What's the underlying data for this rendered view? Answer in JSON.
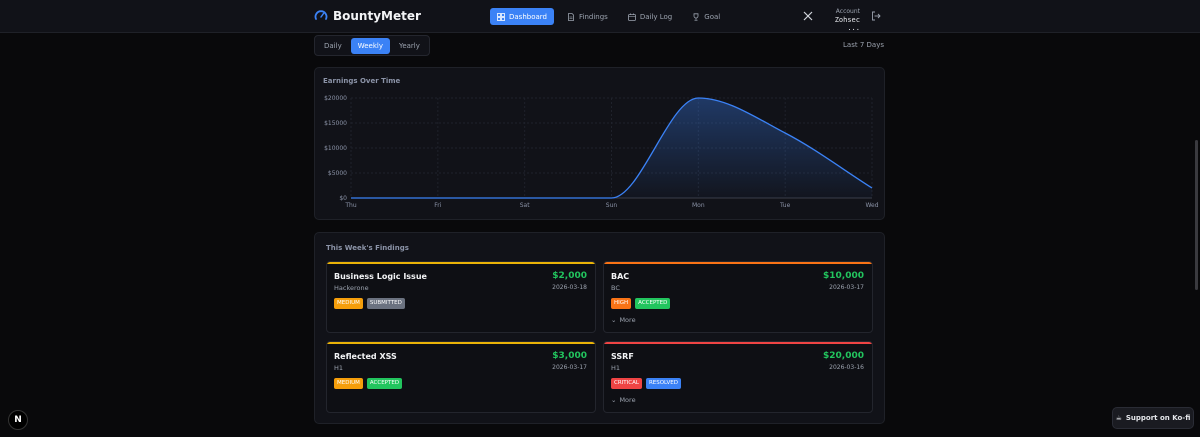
{
  "header": {
    "brand": "BountyMeter",
    "nav": [
      {
        "label": "Dashboard",
        "icon": "dashboard-icon",
        "active": true
      },
      {
        "label": "Findings",
        "icon": "document-icon",
        "active": false
      },
      {
        "label": "Daily Log",
        "icon": "calendar-icon",
        "active": false
      },
      {
        "label": "Goal",
        "icon": "trophy-icon",
        "active": false
      }
    ],
    "account_label": "Account",
    "account_name": "Zohsec ..."
  },
  "periods": {
    "items": [
      "Daily",
      "Weekly",
      "Yearly"
    ],
    "selected": "Weekly",
    "range_label": "Last 7 Days"
  },
  "chart_data": {
    "type": "area",
    "title": "Earnings Over Time",
    "categories": [
      "Thu",
      "Fri",
      "Sat",
      "Sun",
      "Mon",
      "Tue",
      "Wed"
    ],
    "values": [
      0,
      0,
      0,
      0,
      20000,
      13000,
      2000
    ],
    "yticks": [
      "$0",
      "$5000",
      "$10000",
      "$15000",
      "$20000"
    ],
    "ylim": [
      0,
      20000
    ],
    "grid": true,
    "color": "#3b82f6"
  },
  "findings": {
    "title": "This Week's Findings",
    "more_label": "More",
    "items": [
      {
        "title": "Business Logic Issue",
        "program": "Hackerone",
        "amount": "$2,000",
        "date": "2026-03-18",
        "severity": "MEDIUM",
        "status": "SUBMITTED",
        "bar_color": "#eab308",
        "severity_color": "#f59e0b",
        "status_color": "#6b7280",
        "has_more": false
      },
      {
        "title": "BAC",
        "program": "BC",
        "amount": "$10,000",
        "date": "2026-03-17",
        "severity": "HIGH",
        "status": "ACCEPTED",
        "bar_color": "#f97316",
        "severity_color": "#f97316",
        "status_color": "#22c55e",
        "has_more": true
      },
      {
        "title": "Reflected XSS",
        "program": "H1",
        "amount": "$3,000",
        "date": "2026-03-17",
        "severity": "MEDIUM",
        "status": "ACCEPTED",
        "bar_color": "#eab308",
        "severity_color": "#f59e0b",
        "status_color": "#22c55e",
        "has_more": false
      },
      {
        "title": "SSRF",
        "program": "H1",
        "amount": "$20,000",
        "date": "2026-03-16",
        "severity": "CRITICAL",
        "status": "RESOLVED",
        "bar_color": "#ef4444",
        "severity_color": "#ef4444",
        "status_color": "#3b82f6",
        "has_more": true
      }
    ]
  },
  "kofi_label": "Support on Ko-fi",
  "next_badge": "N"
}
